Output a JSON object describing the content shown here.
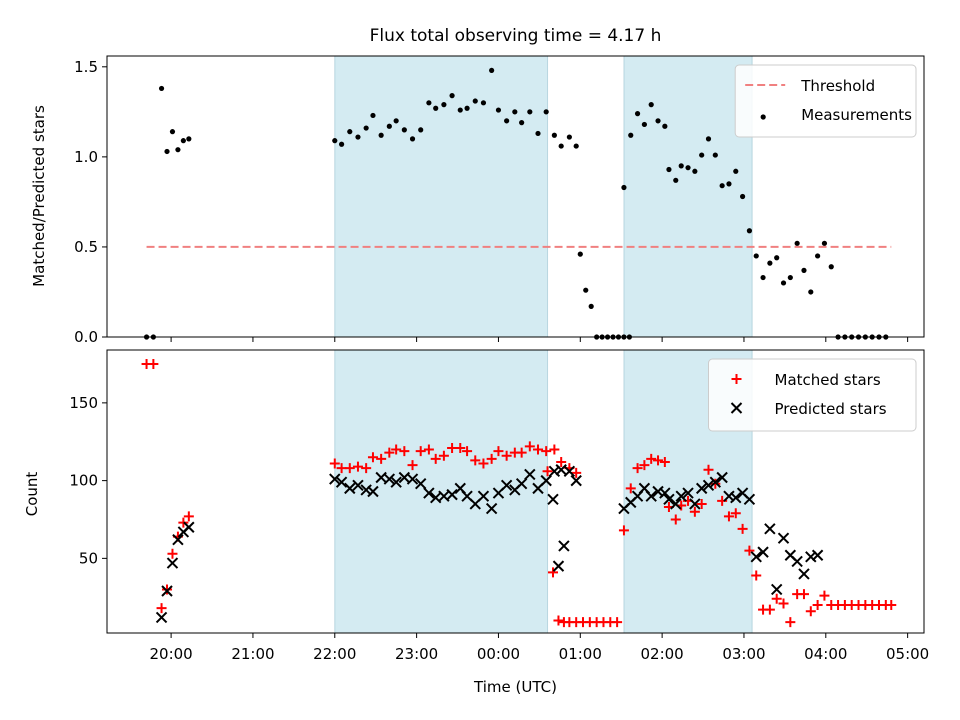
{
  "chart_data": [
    {
      "type": "scatter",
      "title": "Flux total observing time = 4.17 h",
      "ylabel": "Matched/Predicted stars",
      "xlabel": "",
      "ylim": [
        0,
        1.56
      ],
      "yticks": [
        "0.0",
        "0.5",
        "1.0",
        "1.5"
      ],
      "ytick_values": [
        0,
        0.5,
        1.0,
        1.5
      ],
      "legend_position": "top-right",
      "shaded_intervals": [
        [
          "22:00",
          "00:36"
        ],
        [
          "01:32",
          "03:06"
        ]
      ],
      "threshold": {
        "name": "Threshold",
        "y": 0.5,
        "x_range": [
          "19:42",
          "04:48"
        ],
        "color": "#f08080",
        "style": "dashed"
      },
      "series": [
        {
          "name": "Measurements",
          "color": "#000000",
          "marker": "dot",
          "points": [
            [
              "19:42",
              0.0
            ],
            [
              "19:47",
              0.0
            ],
            [
              "19:53",
              1.38
            ],
            [
              "19:57",
              1.03
            ],
            [
              "20:01",
              1.14
            ],
            [
              "20:05",
              1.04
            ],
            [
              "20:09",
              1.09
            ],
            [
              "20:13",
              1.1
            ],
            [
              "22:00",
              1.09
            ],
            [
              "22:05",
              1.07
            ],
            [
              "22:11",
              1.14
            ],
            [
              "22:17",
              1.11
            ],
            [
              "22:23",
              1.16
            ],
            [
              "22:28",
              1.23
            ],
            [
              "22:34",
              1.12
            ],
            [
              "22:40",
              1.17
            ],
            [
              "22:45",
              1.2
            ],
            [
              "22:51",
              1.15
            ],
            [
              "22:57",
              1.1
            ],
            [
              "23:03",
              1.15
            ],
            [
              "23:09",
              1.3
            ],
            [
              "23:14",
              1.27
            ],
            [
              "23:20",
              1.29
            ],
            [
              "23:26",
              1.34
            ],
            [
              "23:32",
              1.26
            ],
            [
              "23:37",
              1.27
            ],
            [
              "23:43",
              1.31
            ],
            [
              "23:49",
              1.3
            ],
            [
              "23:55",
              1.48
            ],
            [
              "00:00",
              1.26
            ],
            [
              "00:06",
              1.2
            ],
            [
              "00:12",
              1.25
            ],
            [
              "00:17",
              1.19
            ],
            [
              "00:23",
              1.25
            ],
            [
              "00:29",
              1.13
            ],
            [
              "00:35",
              1.25
            ],
            [
              "00:41",
              1.12
            ],
            [
              "00:46",
              1.06
            ],
            [
              "00:52",
              1.11
            ],
            [
              "00:57",
              1.06
            ],
            [
              "01:00",
              0.46
            ],
            [
              "01:04",
              0.26
            ],
            [
              "01:08",
              0.17
            ],
            [
              "01:12",
              0.0
            ],
            [
              "01:16",
              0.0
            ],
            [
              "01:20",
              0.0
            ],
            [
              "01:24",
              0.0
            ],
            [
              "01:28",
              0.0
            ],
            [
              "01:32",
              0.0
            ],
            [
              "01:36",
              0.0
            ],
            [
              "01:32",
              0.83
            ],
            [
              "01:37",
              1.12
            ],
            [
              "01:42",
              1.24
            ],
            [
              "01:47",
              1.18
            ],
            [
              "01:52",
              1.29
            ],
            [
              "01:57",
              1.2
            ],
            [
              "02:02",
              1.17
            ],
            [
              "02:05",
              0.93
            ],
            [
              "02:10",
              0.87
            ],
            [
              "02:14",
              0.95
            ],
            [
              "02:19",
              0.94
            ],
            [
              "02:24",
              0.92
            ],
            [
              "02:29",
              1.01
            ],
            [
              "02:34",
              1.1
            ],
            [
              "02:39",
              1.01
            ],
            [
              "02:44",
              0.84
            ],
            [
              "02:49",
              0.85
            ],
            [
              "02:54",
              0.92
            ],
            [
              "02:59",
              0.78
            ],
            [
              "03:04",
              0.59
            ],
            [
              "03:09",
              0.45
            ],
            [
              "03:14",
              0.33
            ],
            [
              "03:19",
              0.41
            ],
            [
              "03:24",
              0.44
            ],
            [
              "03:29",
              0.3
            ],
            [
              "03:34",
              0.33
            ],
            [
              "03:39",
              0.52
            ],
            [
              "03:44",
              0.37
            ],
            [
              "03:49",
              0.25
            ],
            [
              "03:54",
              0.45
            ],
            [
              "03:59",
              0.52
            ],
            [
              "04:04",
              0.39
            ],
            [
              "04:09",
              0.0
            ],
            [
              "04:14",
              0.0
            ],
            [
              "04:19",
              0.0
            ],
            [
              "04:24",
              0.0
            ],
            [
              "04:29",
              0.0
            ],
            [
              "04:34",
              0.0
            ],
            [
              "04:39",
              0.0
            ],
            [
              "04:44",
              0.0
            ]
          ]
        }
      ]
    },
    {
      "type": "scatter",
      "title": "",
      "ylabel": "Count",
      "xlabel": "Time (UTC)",
      "ylim": [
        2,
        184
      ],
      "yticks": [
        "50",
        "100",
        "150"
      ],
      "ytick_values": [
        50,
        100,
        150
      ],
      "xticks": [
        "20:00",
        "21:00",
        "22:00",
        "23:00",
        "00:00",
        "01:00",
        "02:00",
        "03:00",
        "04:00",
        "05:00"
      ],
      "x_range": [
        "19:13",
        "05:12"
      ],
      "legend_position": "top-right",
      "shaded_intervals": [
        [
          "22:00",
          "00:36"
        ],
        [
          "01:32",
          "03:06"
        ]
      ],
      "series": [
        {
          "name": "Matched stars",
          "color": "#ff0000",
          "marker": "plus",
          "points": [
            [
              "19:42",
              175
            ],
            [
              "19:47",
              175
            ],
            [
              "19:53",
              18
            ],
            [
              "19:57",
              30
            ],
            [
              "20:01",
              53
            ],
            [
              "20:05",
              64
            ],
            [
              "20:09",
              73
            ],
            [
              "20:13",
              77
            ],
            [
              "22:00",
              111
            ],
            [
              "22:05",
              108
            ],
            [
              "22:11",
              108
            ],
            [
              "22:17",
              109
            ],
            [
              "22:23",
              108
            ],
            [
              "22:28",
              115
            ],
            [
              "22:34",
              114
            ],
            [
              "22:40",
              118
            ],
            [
              "22:45",
              120
            ],
            [
              "22:51",
              119
            ],
            [
              "22:57",
              110
            ],
            [
              "23:03",
              119
            ],
            [
              "23:09",
              120
            ],
            [
              "23:14",
              114
            ],
            [
              "23:20",
              116
            ],
            [
              "23:26",
              121
            ],
            [
              "23:32",
              121
            ],
            [
              "23:37",
              119
            ],
            [
              "23:43",
              113
            ],
            [
              "23:49",
              111
            ],
            [
              "23:55",
              114
            ],
            [
              "00:00",
              119
            ],
            [
              "00:06",
              116
            ],
            [
              "00:12",
              118
            ],
            [
              "00:17",
              118
            ],
            [
              "00:23",
              122
            ],
            [
              "00:29",
              120
            ],
            [
              "00:35",
              119
            ],
            [
              "00:41",
              120
            ],
            [
              "00:46",
              112
            ],
            [
              "00:52",
              108
            ],
            [
              "00:57",
              105
            ],
            [
              "00:36",
              106
            ],
            [
              "00:40",
              41
            ],
            [
              "00:44",
              10
            ],
            [
              "00:48",
              9
            ],
            [
              "00:52",
              9
            ],
            [
              "00:57",
              9
            ],
            [
              "01:02",
              9
            ],
            [
              "01:07",
              9
            ],
            [
              "01:12",
              9
            ],
            [
              "01:17",
              9
            ],
            [
              "01:22",
              9
            ],
            [
              "01:27",
              9
            ],
            [
              "01:32",
              68
            ],
            [
              "01:37",
              95
            ],
            [
              "01:42",
              108
            ],
            [
              "01:47",
              110
            ],
            [
              "01:52",
              114
            ],
            [
              "01:57",
              113
            ],
            [
              "02:02",
              112
            ],
            [
              "02:05",
              83
            ],
            [
              "02:10",
              75
            ],
            [
              "02:14",
              84
            ],
            [
              "02:19",
              87
            ],
            [
              "02:24",
              80
            ],
            [
              "02:29",
              85
            ],
            [
              "02:34",
              107
            ],
            [
              "02:39",
              98
            ],
            [
              "02:44",
              87
            ],
            [
              "02:49",
              77
            ],
            [
              "02:54",
              79
            ],
            [
              "02:59",
              69
            ],
            [
              "03:04",
              55
            ],
            [
              "03:09",
              39
            ],
            [
              "03:14",
              17
            ],
            [
              "03:19",
              17
            ],
            [
              "03:24",
              24
            ],
            [
              "03:29",
              21
            ],
            [
              "03:34",
              9
            ],
            [
              "03:39",
              27
            ],
            [
              "03:44",
              27
            ],
            [
              "03:49",
              16
            ],
            [
              "03:54",
              20
            ],
            [
              "03:59",
              26
            ],
            [
              "04:04",
              20
            ],
            [
              "04:09",
              20
            ],
            [
              "04:14",
              20
            ],
            [
              "04:19",
              20
            ],
            [
              "04:24",
              20
            ],
            [
              "04:29",
              20
            ],
            [
              "04:34",
              20
            ],
            [
              "04:39",
              20
            ],
            [
              "04:44",
              20
            ],
            [
              "04:48",
              20
            ]
          ]
        },
        {
          "name": "Predicted stars",
          "color": "#000000",
          "marker": "x",
          "points": [
            [
              "19:53",
              12
            ],
            [
              "19:57",
              29
            ],
            [
              "20:01",
              47
            ],
            [
              "20:05",
              62
            ],
            [
              "20:09",
              67
            ],
            [
              "20:13",
              70
            ],
            [
              "22:00",
              101
            ],
            [
              "22:05",
              99
            ],
            [
              "22:11",
              95
            ],
            [
              "22:17",
              97
            ],
            [
              "22:23",
              94
            ],
            [
              "22:28",
              93
            ],
            [
              "22:34",
              102
            ],
            [
              "22:40",
              101
            ],
            [
              "22:45",
              99
            ],
            [
              "22:51",
              102
            ],
            [
              "22:57",
              101
            ],
            [
              "23:03",
              98
            ],
            [
              "23:09",
              92
            ],
            [
              "23:14",
              89
            ],
            [
              "23:20",
              90
            ],
            [
              "23:26",
              91
            ],
            [
              "23:32",
              95
            ],
            [
              "23:37",
              90
            ],
            [
              "23:43",
              85
            ],
            [
              "23:49",
              90
            ],
            [
              "23:55",
              82
            ],
            [
              "00:00",
              92
            ],
            [
              "00:06",
              97
            ],
            [
              "00:12",
              94
            ],
            [
              "00:17",
              98
            ],
            [
              "00:23",
              104
            ],
            [
              "00:29",
              95
            ],
            [
              "00:35",
              100
            ],
            [
              "00:41",
              106
            ],
            [
              "00:46",
              107
            ],
            [
              "00:52",
              106
            ],
            [
              "00:57",
              100
            ],
            [
              "00:40",
              88
            ],
            [
              "00:44",
              45
            ],
            [
              "00:48",
              58
            ],
            [
              "01:32",
              82
            ],
            [
              "01:37",
              86
            ],
            [
              "01:42",
              90
            ],
            [
              "01:47",
              95
            ],
            [
              "01:52",
              90
            ],
            [
              "01:57",
              93
            ],
            [
              "02:02",
              92
            ],
            [
              "02:05",
              88
            ],
            [
              "02:10",
              85
            ],
            [
              "02:14",
              90
            ],
            [
              "02:19",
              92
            ],
            [
              "02:24",
              85
            ],
            [
              "02:29",
              95
            ],
            [
              "02:34",
              97
            ],
            [
              "02:39",
              99
            ],
            [
              "02:44",
              102
            ],
            [
              "02:49",
              90
            ],
            [
              "02:54",
              89
            ],
            [
              "02:59",
              92
            ],
            [
              "03:04",
              88
            ],
            [
              "03:09",
              51
            ],
            [
              "03:14",
              54
            ],
            [
              "03:19",
              69
            ],
            [
              "03:24",
              30
            ],
            [
              "03:29",
              63
            ],
            [
              "03:34",
              52
            ],
            [
              "03:39",
              48
            ],
            [
              "03:44",
              40
            ],
            [
              "03:49",
              51
            ],
            [
              "03:54",
              52
            ]
          ]
        }
      ]
    }
  ]
}
